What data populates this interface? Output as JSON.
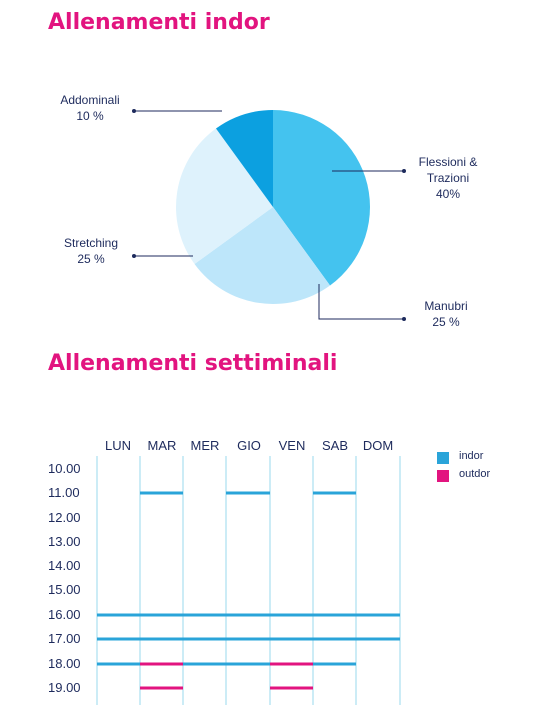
{
  "colors": {
    "title": "#e2147f",
    "text": "#1d2a5c",
    "indor": "#2aa4d9",
    "outdor": "#e2147f",
    "grid": "#9ad8ee"
  },
  "titles": {
    "pie": "Allenamenti indor",
    "schedule": "Allenamenti settiminali"
  },
  "chart_data": [
    {
      "type": "pie",
      "title": "Allenamenti indor",
      "slices": [
        {
          "label": "Flessioni & Trazioni",
          "value": 40,
          "value_label": "40%",
          "color": "#44c3ef"
        },
        {
          "label": "Manubri",
          "value": 25,
          "value_label": "25 %",
          "color": "#bde6fa"
        },
        {
          "label": "Stretching",
          "value": 25,
          "value_label": "25 %",
          "color": "#def2fc"
        },
        {
          "label": "Addominali",
          "value": 10,
          "value_label": "10 %",
          "color": "#0ca0e0"
        }
      ]
    },
    {
      "type": "table",
      "title": "Allenamenti settiminali",
      "days": [
        "LUN",
        "MAR",
        "MER",
        "GIO",
        "VEN",
        "SAB",
        "DOM"
      ],
      "hours": [
        "10.00",
        "11.00",
        "12.00",
        "13.00",
        "14.00",
        "15.00",
        "16.00",
        "17.00",
        "18.00",
        "19.00"
      ],
      "legend": [
        {
          "name": "indor",
          "color": "#2aa4d9"
        },
        {
          "name": "outdor",
          "color": "#e2147f"
        }
      ],
      "sessions": [
        {
          "type": "indor",
          "from": "MAR",
          "to": "MAR",
          "hour": "11.00"
        },
        {
          "type": "indor",
          "from": "GIO",
          "to": "GIO",
          "hour": "11.00"
        },
        {
          "type": "indor",
          "from": "SAB",
          "to": "SAB",
          "hour": "11.00"
        },
        {
          "type": "indor",
          "from": "LUN",
          "to": "DOM",
          "hour": "16.00"
        },
        {
          "type": "indor",
          "from": "LUN",
          "to": "DOM",
          "hour": "17.00"
        },
        {
          "type": "indor",
          "from": "LUN",
          "to": "SAB",
          "hour": "18.00"
        },
        {
          "type": "outdor",
          "from": "MAR",
          "to": "MAR",
          "hour": "18.00"
        },
        {
          "type": "outdor",
          "from": "VEN",
          "to": "VEN",
          "hour": "18.00"
        },
        {
          "type": "outdor",
          "from": "MAR",
          "to": "MAR",
          "hour": "19.00"
        },
        {
          "type": "outdor",
          "from": "VEN",
          "to": "VEN",
          "hour": "19.00"
        }
      ]
    }
  ]
}
